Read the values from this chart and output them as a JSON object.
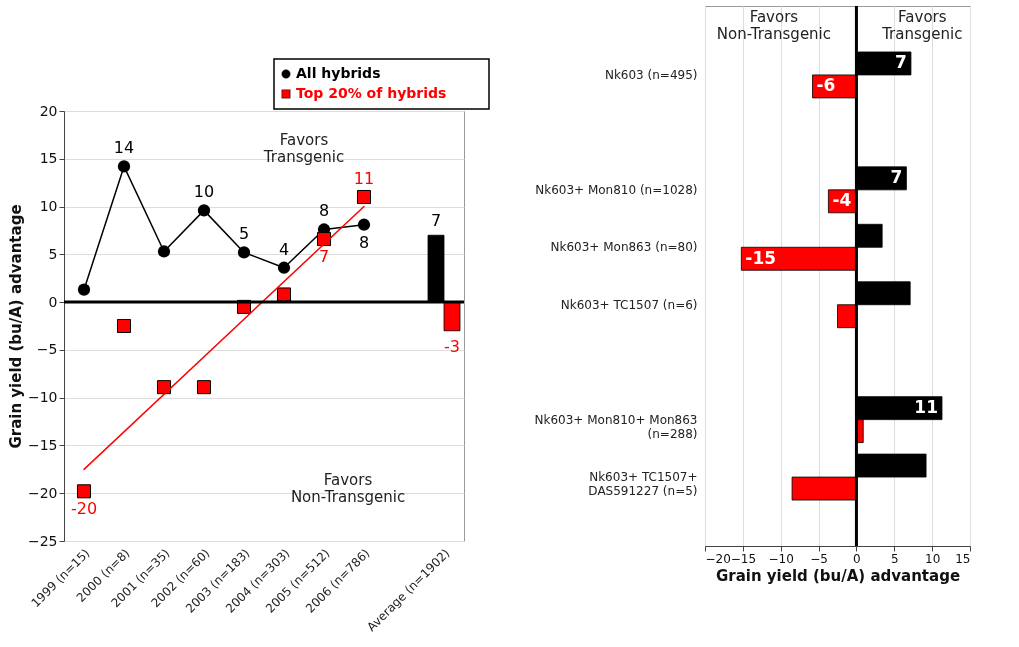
{
  "chart_data": [
    {
      "type": "line",
      "ylabel": "Grain yield (bu/A) advantage",
      "categories": [
        "1999 (n=15)",
        "2000 (n=8)",
        "2001 (n=35)",
        "2002 (n=60)",
        "2003 (n=183)",
        "2004 (n=303)",
        "2005 (n=512)",
        "2006 (n=786)",
        null,
        "Average (n=1902)"
      ],
      "ylim": [
        -25,
        20
      ],
      "yticks": [
        -25,
        -20,
        -15,
        -10,
        -5,
        0,
        5,
        10,
        15,
        20
      ],
      "grid": "y",
      "legend": "top right",
      "ref_lines": [
        {
          "axis": "y",
          "value": 0
        }
      ],
      "annotations": [
        "Favors Transgenic",
        "Favors Non-Transgenic"
      ],
      "series": [
        {
          "name": "All hybrids",
          "type": "line",
          "color": "#000000",
          "marker": "circle",
          "values": [
            1.3,
            14.2,
            5.3,
            9.6,
            5.2,
            3.6,
            7.6,
            8.1,
            null,
            null
          ],
          "value_labels": [
            null,
            "14",
            null,
            "10",
            "5",
            "4",
            "8",
            "8",
            null,
            null
          ]
        },
        {
          "name": "Top 20% of hybrids",
          "type": "scatter",
          "color": "#ff0000",
          "marker": "square",
          "values": [
            -19.8,
            -2.5,
            -8.9,
            -8.9,
            -0.5,
            0.8,
            6.6,
            11,
            null,
            null
          ],
          "value_labels": [
            "-20",
            null,
            null,
            null,
            null,
            null,
            "7",
            "11",
            null,
            null
          ]
        },
        {
          "type": "line",
          "color": "#ff0000",
          "marker": "none",
          "x": [
            "1999 (n=15)",
            "2006 (n=786)"
          ],
          "values": [
            -17.5,
            10
          ]
        },
        {
          "type": "bar",
          "color": "#000000",
          "values": [
            null,
            null,
            null,
            null,
            null,
            null,
            null,
            null,
            null,
            7
          ],
          "value_labels": [
            null,
            null,
            null,
            null,
            null,
            null,
            null,
            null,
            null,
            "7"
          ]
        },
        {
          "type": "bar",
          "color": "#ff0000",
          "values": [
            null,
            null,
            null,
            null,
            null,
            null,
            null,
            null,
            null,
            -3
          ],
          "value_labels": [
            null,
            null,
            null,
            null,
            null,
            null,
            null,
            null,
            null,
            "-3"
          ]
        }
      ]
    },
    {
      "type": "bar",
      "orientation": "horizontal",
      "xlabel": "Grain yield (bu/A) advantage",
      "categories": [
        "Nk603 (n=495)",
        null,
        "Nk603+ Mon810 (n=1028)",
        "Nk603+ Mon863 (n=80)",
        "Nk603+ TC1507 (n=6)",
        null,
        "Nk603+ Mon810+ Mon863\n(n=288)",
        "Nk603+ TC1507+\nDAS591227 (n=5)"
      ],
      "xlim": [
        -20,
        15
      ],
      "xticks": [
        -20,
        -15,
        -10,
        -5,
        0,
        5,
        10,
        15
      ],
      "grid": "x",
      "ref_lines": [
        {
          "axis": "x",
          "value": 0
        }
      ],
      "annotations": [
        "Favors Non-Transgenic",
        "Favors Transgenic"
      ],
      "series": [
        {
          "color": "#000000",
          "values": [
            7.2,
            null,
            6.6,
            3.4,
            7.1,
            null,
            11.3,
            9.2
          ],
          "value_labels": [
            "7",
            null,
            "7",
            null,
            null,
            null,
            "11",
            null
          ]
        },
        {
          "color": "#ff0000",
          "values": [
            -5.8,
            null,
            -3.7,
            -15.2,
            -2.5,
            null,
            0.9,
            -8.5
          ],
          "value_labels": [
            "-6",
            null,
            "-4",
            "-15",
            null,
            null,
            null,
            null
          ]
        }
      ]
    }
  ]
}
